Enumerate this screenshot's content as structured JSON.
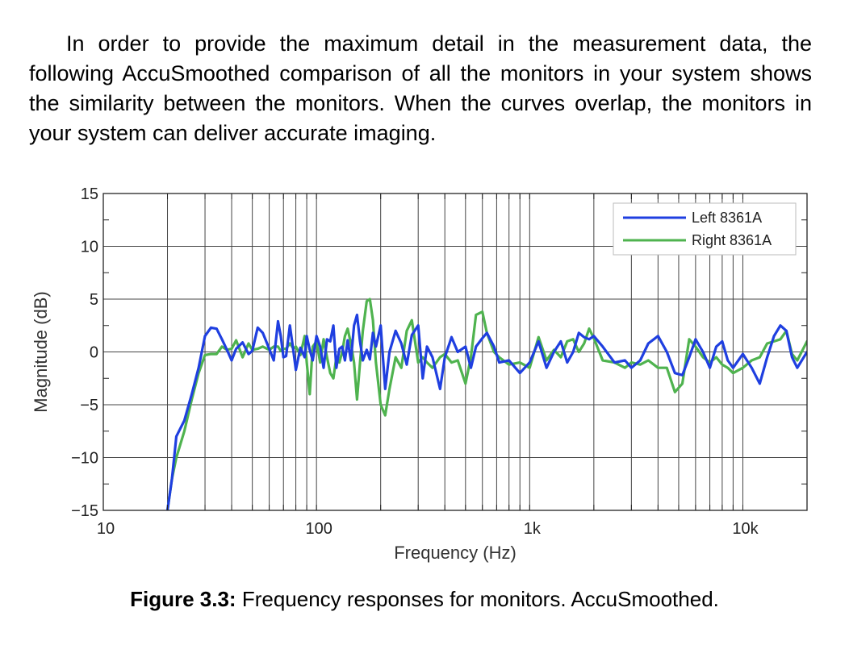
{
  "intro_text": "In order to provide the maximum detail in the measurement data, the following AccuSmoothed comparison of all the monitors in your system shows the similarity between the monitors. When the curves overlap, the monitors in your system can deliver accurate imaging.",
  "caption": {
    "label": "Figure 3.3:",
    "text": " Frequency responses for monitors. AccuSmoothed."
  },
  "chart_data": {
    "type": "line",
    "xlabel": "Frequency (Hz)",
    "ylabel": "Magnitude (dB)",
    "xscale": "log",
    "xlim": [
      10,
      20000
    ],
    "ylim": [
      -15,
      15
    ],
    "x_ticks": [
      10,
      100,
      1000,
      10000
    ],
    "x_tick_labels": [
      "10",
      "100",
      "1k",
      "10k"
    ],
    "y_ticks": [
      -15,
      -10,
      -5,
      0,
      5,
      10,
      15
    ],
    "y_tick_labels": [
      "−15",
      "−10",
      "−5",
      "0",
      "5",
      "10",
      "15"
    ],
    "grid": true,
    "legend_position": "top-right",
    "series": [
      {
        "name": "Left 8361A",
        "color": "#1f3fe0",
        "points": [
          [
            20,
            -15
          ],
          [
            21,
            -12
          ],
          [
            22,
            -8
          ],
          [
            24,
            -6.5
          ],
          [
            26,
            -4
          ],
          [
            28,
            -1.5
          ],
          [
            30,
            1.5
          ],
          [
            32,
            2.3
          ],
          [
            34,
            2.2
          ],
          [
            36,
            1.2
          ],
          [
            38,
            0.2
          ],
          [
            40,
            -0.8
          ],
          [
            42,
            0.3
          ],
          [
            45,
            0.9
          ],
          [
            48,
            -0.2
          ],
          [
            50,
            0.1
          ],
          [
            53,
            2.3
          ],
          [
            56,
            1.8
          ],
          [
            60,
            0.3
          ],
          [
            63,
            -0.8
          ],
          [
            66,
            2.9
          ],
          [
            68,
            1.5
          ],
          [
            70,
            -0.5
          ],
          [
            72,
            -0.4
          ],
          [
            75,
            2.5
          ],
          [
            78,
            0
          ],
          [
            80,
            -1.7
          ],
          [
            84,
            0.4
          ],
          [
            88,
            -0.5
          ],
          [
            90,
            1.5
          ],
          [
            93,
            0.2
          ],
          [
            96,
            -0.8
          ],
          [
            100,
            1.5
          ],
          [
            104,
            0.5
          ],
          [
            108,
            -1.5
          ],
          [
            112,
            1.2
          ],
          [
            116,
            1
          ],
          [
            120,
            2.5
          ],
          [
            124,
            -1.5
          ],
          [
            128,
            0.3
          ],
          [
            132,
            0.5
          ],
          [
            136,
            -0.8
          ],
          [
            140,
            1.1
          ],
          [
            145,
            -0.8
          ],
          [
            150,
            2.5
          ],
          [
            155,
            3.5
          ],
          [
            160,
            1
          ],
          [
            165,
            -0.8
          ],
          [
            172,
            0.2
          ],
          [
            178,
            -0.7
          ],
          [
            184,
            1.8
          ],
          [
            190,
            0.5
          ],
          [
            200,
            2.5
          ],
          [
            210,
            -3.5
          ],
          [
            220,
            0
          ],
          [
            235,
            2
          ],
          [
            250,
            0.8
          ],
          [
            265,
            -1.2
          ],
          [
            280,
            1.6
          ],
          [
            300,
            2.5
          ],
          [
            315,
            -2.5
          ],
          [
            330,
            0.5
          ],
          [
            350,
            -0.5
          ],
          [
            380,
            -3.5
          ],
          [
            400,
            -0.5
          ],
          [
            430,
            1.4
          ],
          [
            460,
            0
          ],
          [
            500,
            0.5
          ],
          [
            530,
            -1.5
          ],
          [
            560,
            0.5
          ],
          [
            600,
            1.3
          ],
          [
            630,
            1.8
          ],
          [
            680,
            0.5
          ],
          [
            720,
            -1
          ],
          [
            800,
            -0.8
          ],
          [
            900,
            -2
          ],
          [
            1000,
            -1
          ],
          [
            1100,
            1
          ],
          [
            1200,
            -1.5
          ],
          [
            1300,
            0
          ],
          [
            1400,
            1
          ],
          [
            1500,
            -1
          ],
          [
            1600,
            0
          ],
          [
            1700,
            1.8
          ],
          [
            1800,
            1.4
          ],
          [
            1900,
            1.2
          ],
          [
            2000,
            1.5
          ],
          [
            2200,
            0.5
          ],
          [
            2500,
            -1
          ],
          [
            2800,
            -0.8
          ],
          [
            3000,
            -1.5
          ],
          [
            3300,
            -0.8
          ],
          [
            3600,
            0.8
          ],
          [
            4000,
            1.5
          ],
          [
            4400,
            0
          ],
          [
            4800,
            -2
          ],
          [
            5200,
            -2.2
          ],
          [
            5600,
            -0.5
          ],
          [
            6000,
            1.2
          ],
          [
            6500,
            0
          ],
          [
            7000,
            -1.5
          ],
          [
            7500,
            0.5
          ],
          [
            8000,
            1
          ],
          [
            8500,
            -0.8
          ],
          [
            9000,
            -1.5
          ],
          [
            10000,
            -0.2
          ],
          [
            11000,
            -1.5
          ],
          [
            12000,
            -3
          ],
          [
            13000,
            -0.5
          ],
          [
            14000,
            1.5
          ],
          [
            15000,
            2.5
          ],
          [
            16000,
            2
          ],
          [
            17000,
            -0.5
          ],
          [
            18000,
            -1.5
          ],
          [
            20000,
            0
          ]
        ]
      },
      {
        "name": "Right 8361A",
        "color": "#4fb34f",
        "points": [
          [
            20,
            -15
          ],
          [
            21,
            -12
          ],
          [
            22,
            -10
          ],
          [
            24,
            -7.5
          ],
          [
            26,
            -4.5
          ],
          [
            28,
            -2
          ],
          [
            30,
            -0.3
          ],
          [
            32,
            -0.2
          ],
          [
            34,
            -0.2
          ],
          [
            36,
            0.5
          ],
          [
            38,
            0.2
          ],
          [
            40,
            0.3
          ],
          [
            42,
            1.1
          ],
          [
            45,
            -0.5
          ],
          [
            48,
            0.8
          ],
          [
            50,
            0.2
          ],
          [
            53,
            0.3
          ],
          [
            56,
            0.5
          ],
          [
            60,
            0.2
          ],
          [
            63,
            0.5
          ],
          [
            66,
            0.5
          ],
          [
            68,
            0.1
          ],
          [
            70,
            0.3
          ],
          [
            72,
            0.3
          ],
          [
            75,
            0.8
          ],
          [
            78,
            0.3
          ],
          [
            80,
            0.5
          ],
          [
            84,
            -0.3
          ],
          [
            88,
            1.5
          ],
          [
            90,
            -1
          ],
          [
            93,
            -4
          ],
          [
            96,
            0.5
          ],
          [
            100,
            1
          ],
          [
            104,
            -1
          ],
          [
            108,
            1.2
          ],
          [
            112,
            -0.5
          ],
          [
            116,
            -2
          ],
          [
            120,
            -2.5
          ],
          [
            124,
            -0.5
          ],
          [
            128,
            -1
          ],
          [
            132,
            0
          ],
          [
            136,
            1.5
          ],
          [
            140,
            2.2
          ],
          [
            145,
            0.8
          ],
          [
            150,
            -1
          ],
          [
            155,
            -4.5
          ],
          [
            160,
            -1
          ],
          [
            165,
            2
          ],
          [
            172,
            4.8
          ],
          [
            178,
            5
          ],
          [
            184,
            3
          ],
          [
            190,
            -1
          ],
          [
            200,
            -5
          ],
          [
            210,
            -6
          ],
          [
            220,
            -3.5
          ],
          [
            235,
            -0.5
          ],
          [
            250,
            -1.5
          ],
          [
            265,
            2
          ],
          [
            280,
            3
          ],
          [
            300,
            -1
          ],
          [
            315,
            -0.5
          ],
          [
            330,
            -1
          ],
          [
            350,
            -1.5
          ],
          [
            380,
            -0.5
          ],
          [
            400,
            -0.2
          ],
          [
            430,
            -1
          ],
          [
            460,
            -0.8
          ],
          [
            500,
            -3
          ],
          [
            530,
            -0.5
          ],
          [
            560,
            3.5
          ],
          [
            600,
            3.8
          ],
          [
            630,
            1.8
          ],
          [
            680,
            0
          ],
          [
            720,
            -0.5
          ],
          [
            800,
            -1.2
          ],
          [
            900,
            -1
          ],
          [
            1000,
            -1.5
          ],
          [
            1100,
            1.4
          ],
          [
            1200,
            -0.8
          ],
          [
            1300,
            0.2
          ],
          [
            1400,
            -0.5
          ],
          [
            1500,
            1
          ],
          [
            1600,
            1.2
          ],
          [
            1700,
            0
          ],
          [
            1800,
            0.8
          ],
          [
            1900,
            2.2
          ],
          [
            2000,
            1.3
          ],
          [
            2200,
            -0.8
          ],
          [
            2500,
            -1
          ],
          [
            2800,
            -1.5
          ],
          [
            3000,
            -1
          ],
          [
            3300,
            -1.2
          ],
          [
            3600,
            -0.8
          ],
          [
            4000,
            -1.5
          ],
          [
            4400,
            -1.5
          ],
          [
            4800,
            -3.8
          ],
          [
            5200,
            -3
          ],
          [
            5600,
            1.2
          ],
          [
            6000,
            0.5
          ],
          [
            6500,
            -0.5
          ],
          [
            7000,
            -1
          ],
          [
            7500,
            -0.5
          ],
          [
            8000,
            -1.2
          ],
          [
            8500,
            -1.5
          ],
          [
            9000,
            -2
          ],
          [
            10000,
            -1.5
          ],
          [
            11000,
            -0.8
          ],
          [
            12000,
            -0.5
          ],
          [
            13000,
            0.8
          ],
          [
            14000,
            1
          ],
          [
            15000,
            1.2
          ],
          [
            16000,
            2
          ],
          [
            17000,
            -0.2
          ],
          [
            18000,
            -0.8
          ],
          [
            20000,
            1
          ]
        ]
      }
    ]
  }
}
